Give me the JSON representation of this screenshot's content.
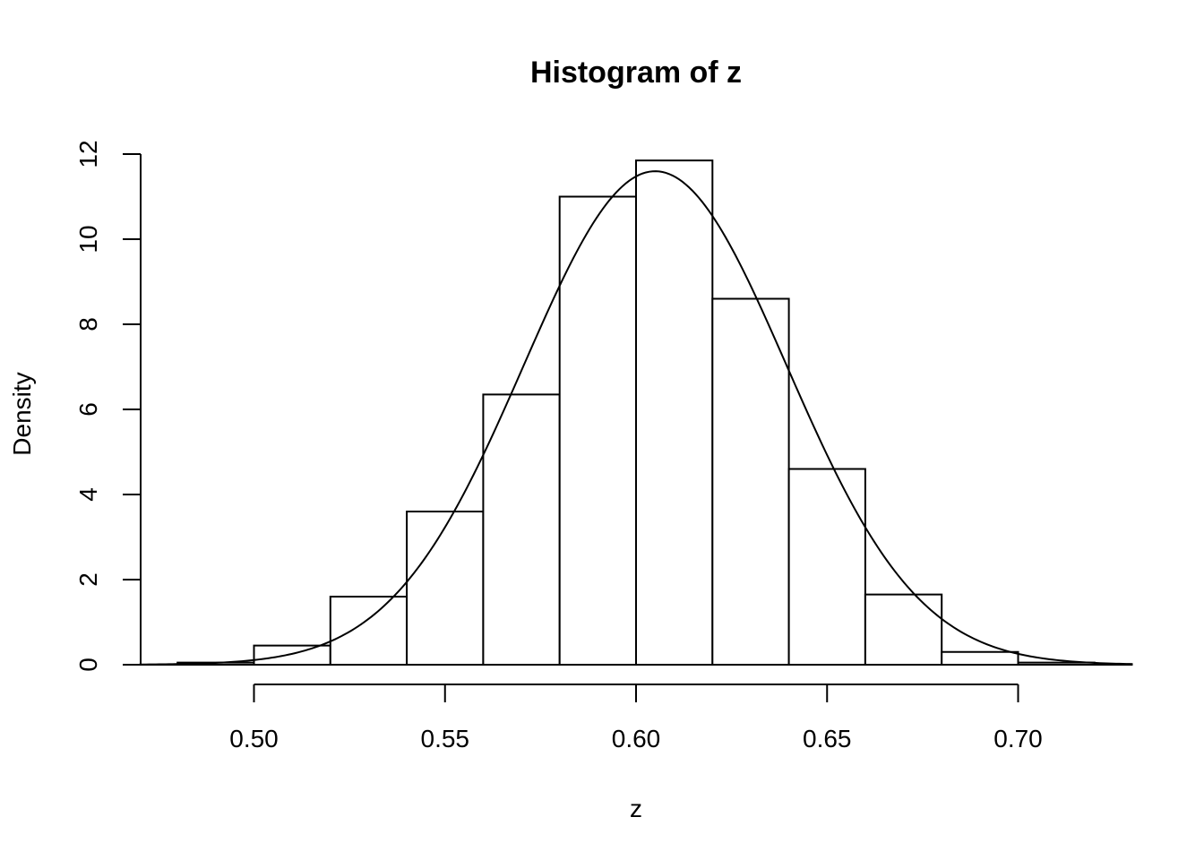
{
  "chart_data": {
    "type": "bar",
    "title": "Histogram of z",
    "xlabel": "z",
    "ylabel": "Density",
    "bins": [
      {
        "start": 0.48,
        "end": 0.5,
        "density": 0.05
      },
      {
        "start": 0.5,
        "end": 0.52,
        "density": 0.45
      },
      {
        "start": 0.52,
        "end": 0.54,
        "density": 1.6
      },
      {
        "start": 0.54,
        "end": 0.56,
        "density": 3.6
      },
      {
        "start": 0.56,
        "end": 0.58,
        "density": 6.35
      },
      {
        "start": 0.58,
        "end": 0.6,
        "density": 11.0
      },
      {
        "start": 0.6,
        "end": 0.62,
        "density": 11.85
      },
      {
        "start": 0.62,
        "end": 0.64,
        "density": 8.6
      },
      {
        "start": 0.64,
        "end": 0.66,
        "density": 4.6
      },
      {
        "start": 0.66,
        "end": 0.68,
        "density": 1.65
      },
      {
        "start": 0.68,
        "end": 0.7,
        "density": 0.3
      },
      {
        "start": 0.7,
        "end": 0.72,
        "density": 0.05
      }
    ],
    "density_curve": {
      "type": "normal",
      "mean": 0.605,
      "sd": 0.0344
    },
    "xlim": [
      0.47,
      0.73
    ],
    "ylim": [
      0,
      12
    ],
    "x_ticks": [
      0.5,
      0.55,
      0.6,
      0.65,
      0.7
    ],
    "x_tick_labels": [
      "0.50",
      "0.55",
      "0.60",
      "0.65",
      "0.70"
    ],
    "y_ticks": [
      0,
      2,
      4,
      6,
      8,
      10,
      12
    ],
    "y_tick_labels": [
      "0",
      "2",
      "4",
      "6",
      "8",
      "10",
      "12"
    ],
    "grid": false
  }
}
